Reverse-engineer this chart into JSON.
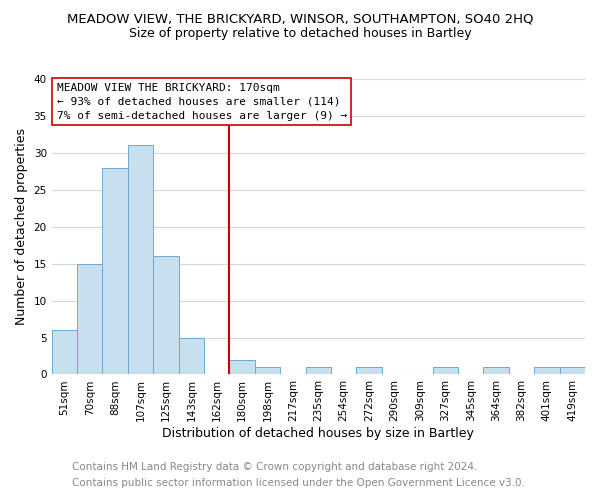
{
  "title": "MEADOW VIEW, THE BRICKYARD, WINSOR, SOUTHAMPTON, SO40 2HQ",
  "subtitle": "Size of property relative to detached houses in Bartley",
  "xlabel": "Distribution of detached houses by size in Bartley",
  "ylabel": "Number of detached properties",
  "bar_labels": [
    "51sqm",
    "70sqm",
    "88sqm",
    "107sqm",
    "125sqm",
    "143sqm",
    "162sqm",
    "180sqm",
    "198sqm",
    "217sqm",
    "235sqm",
    "254sqm",
    "272sqm",
    "290sqm",
    "309sqm",
    "327sqm",
    "345sqm",
    "364sqm",
    "382sqm",
    "401sqm",
    "419sqm"
  ],
  "bar_values": [
    6,
    15,
    28,
    31,
    16,
    5,
    0,
    2,
    1,
    0,
    1,
    0,
    1,
    0,
    0,
    1,
    0,
    1,
    0,
    1,
    1
  ],
  "bar_color": "#c8dff0",
  "bar_edge_color": "#6aaad4",
  "reference_line_x": 6.5,
  "reference_line_color": "#cc0000",
  "ylim": [
    0,
    40
  ],
  "yticks": [
    0,
    5,
    10,
    15,
    20,
    25,
    30,
    35,
    40
  ],
  "annotation_title": "MEADOW VIEW THE BRICKYARD: 170sqm",
  "annotation_line1": "← 93% of detached houses are smaller (114)",
  "annotation_line2": "7% of semi-detached houses are larger (9) →",
  "annotation_box_color": "#ffffff",
  "annotation_box_edge": "#cc0000",
  "footer1": "Contains HM Land Registry data © Crown copyright and database right 2024.",
  "footer2": "Contains public sector information licensed under the Open Government Licence v3.0.",
  "background_color": "#ffffff",
  "plot_bg_color": "#ffffff",
  "grid_color": "#d0d8e0",
  "title_fontsize": 9.5,
  "subtitle_fontsize": 9,
  "axis_label_fontsize": 9,
  "tick_fontsize": 7.5,
  "footer_fontsize": 7.5
}
